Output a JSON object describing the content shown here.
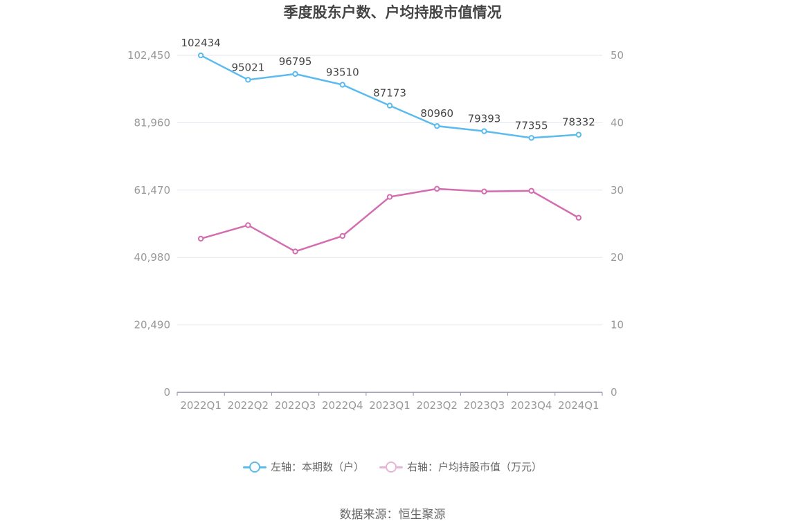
{
  "title": "季度股东户数、户均持股市值情况",
  "source": "数据来源：恒生聚源",
  "colors": {
    "left_series": "#5bbbee",
    "right_series": "#d46db0",
    "axis_text": "#999999",
    "grid": "#e3e6f0",
    "axis_line": "#8f8fa8",
    "label": "#444444"
  },
  "chart_data": {
    "type": "line",
    "categories": [
      "2022Q1",
      "2022Q2",
      "2022Q3",
      "2022Q4",
      "2023Q1",
      "2023Q2",
      "2023Q3",
      "2023Q4",
      "2024Q1"
    ],
    "left_axis": {
      "ylim": [
        0,
        102450
      ],
      "ticks": [
        "0",
        "20,490",
        "40,980",
        "61,470",
        "81,960",
        "102,450"
      ],
      "tick_values": [
        0,
        20490,
        40980,
        61470,
        81960,
        102450
      ]
    },
    "right_axis": {
      "ylim": [
        0,
        50
      ],
      "ticks": [
        "0",
        "10",
        "20",
        "30",
        "40",
        "50"
      ],
      "tick_values": [
        0,
        10,
        20,
        30,
        40,
        50
      ]
    },
    "series": [
      {
        "name": "左轴：本期数（户）",
        "axis": "left",
        "values": [
          102434,
          95021,
          96795,
          93510,
          87173,
          80960,
          79393,
          77355,
          78332
        ],
        "labels": [
          "102434",
          "95021",
          "96795",
          "93510",
          "87173",
          "80960",
          "79393",
          "77355",
          "78332"
        ]
      },
      {
        "name": "右轴：户均持股市值（万元）",
        "axis": "right",
        "values": [
          22.8,
          24.8,
          20.9,
          23.2,
          29.0,
          30.2,
          29.8,
          29.9,
          25.9
        ]
      }
    ],
    "grid": true,
    "legend_position": "bottom"
  }
}
